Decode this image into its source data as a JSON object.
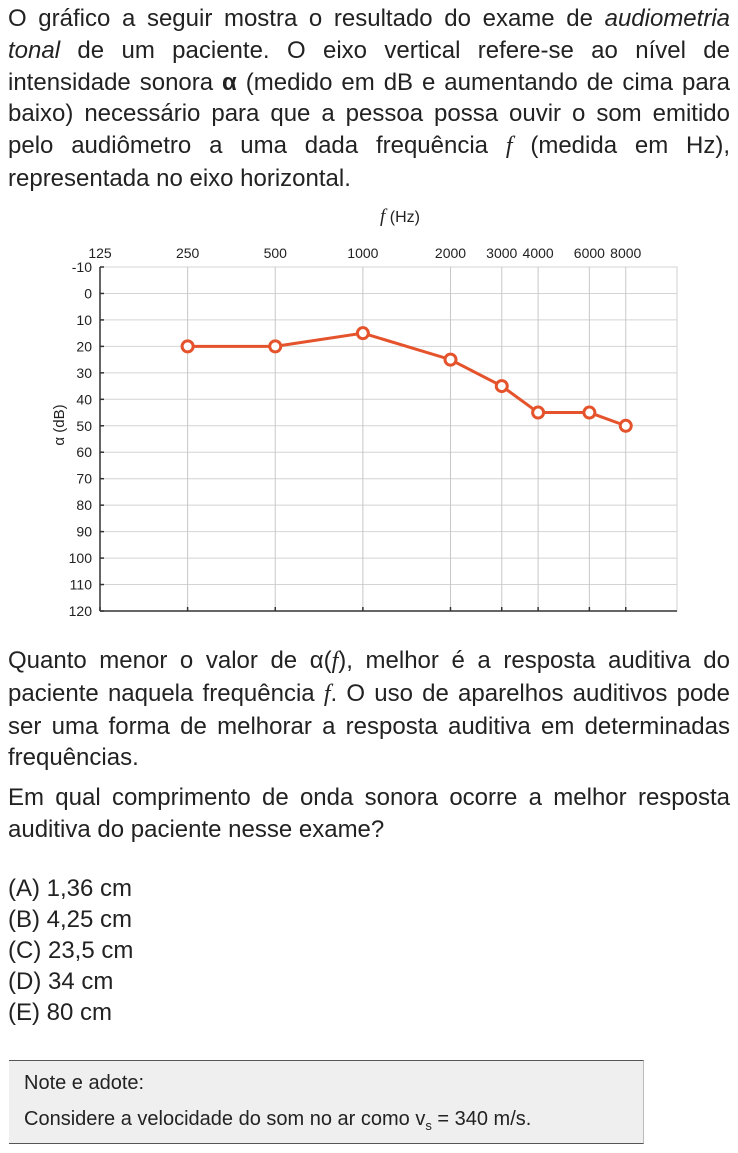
{
  "intro": [
    "O gráfico a seguir mostra o resultado do exame de ",
    "audiometria tonal",
    " de um paciente. O eixo vertical refere-se ao nível de intensidade sonora ",
    "α",
    " (medido em dB e aumentando de cima para baixo) necessário para que a pessoa possa ouvir o som emitido pelo audiômetro a uma dada frequência ",
    "f",
    " (medida em Hz), representada no eixo horizontal."
  ],
  "chart_data": {
    "type": "line",
    "xlabel": [
      "f",
      " (Hz)"
    ],
    "ylabel": "α (dB)",
    "x": [
      250,
      500,
      1000,
      2000,
      3000,
      4000,
      6000,
      8000
    ],
    "series": [
      {
        "color": "#e4532b",
        "values": [
          20,
          20,
          15,
          25,
          35,
          45,
          45,
          50
        ]
      }
    ],
    "xscale": "log",
    "xlim": [
      125,
      12000
    ],
    "xticks": [
      125,
      250,
      500,
      1000,
      2000,
      3000,
      4000,
      6000,
      8000
    ],
    "ylim": [
      -10,
      120
    ],
    "y_inverted": true,
    "yticks": [
      -10,
      0,
      10,
      20,
      30,
      40,
      50,
      60,
      70,
      80,
      90,
      100,
      110,
      120
    ],
    "grid": true
  },
  "explanation": [
    "Quanto menor o valor de α(",
    "f",
    "), melhor é a resposta auditiva do paciente naquela frequência ",
    "f",
    ". O uso de aparelhos auditivos pode ser uma forma de melhorar a resposta auditiva em determinadas frequências."
  ],
  "question": "Em qual comprimento de onda sonora ocorre a melhor resposta auditiva do paciente nesse exame?",
  "options": [
    "(A) 1,36 cm",
    "(B) 4,25 cm",
    "(C) 23,5 cm",
    "(D) 34 cm",
    "(E) 80 cm"
  ],
  "note": {
    "title": "Note e adote:",
    "text": [
      "Considere a velocidade do som no ar como v",
      "s",
      " = 340 m/s."
    ]
  }
}
